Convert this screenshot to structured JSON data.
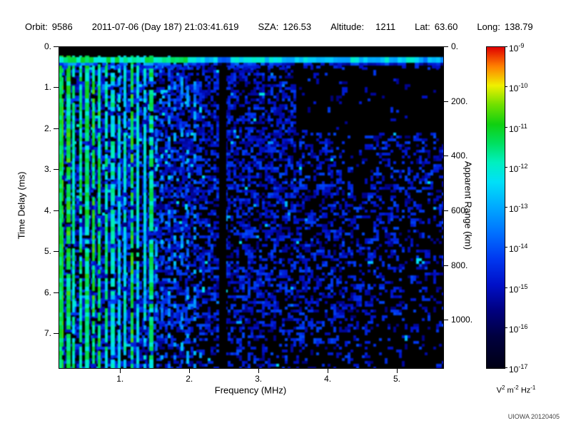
{
  "header": {
    "fields": [
      {
        "label": "Orbit:",
        "value": "9586"
      },
      {
        "label": "",
        "value": "2011-07-06 (Day 187) 21:03:41.619"
      },
      {
        "label": "SZA:",
        "value": "126.53"
      },
      {
        "label": "Altitude:",
        "value": "1211"
      },
      {
        "label": "Lat:",
        "value": "63.60"
      },
      {
        "label": "Long:",
        "value": "138.79"
      }
    ]
  },
  "credit": "UIOWA 20120405",
  "chart_data": {
    "type": "heatmap",
    "title": "",
    "x_axis": {
      "label": "Frequency (MHz)",
      "range_MHz": [
        0.11,
        5.66
      ],
      "ticks": [
        "1.",
        "2.",
        "3.",
        "4.",
        "5."
      ],
      "tick_values_MHz": [
        1,
        2,
        3,
        4,
        5
      ]
    },
    "y_axis": {
      "label": "Time Delay (ms)",
      "range_ms": [
        0,
        7.83
      ],
      "direction": "increasing downward",
      "ticks": [
        "0.",
        "1.",
        "2.",
        "3.",
        "4.",
        "5.",
        "6.",
        "7."
      ],
      "tick_values_ms": [
        0,
        1,
        2,
        3,
        4,
        5,
        6,
        7
      ]
    },
    "y2_axis": {
      "label": "Apparent Range (km)",
      "range_km": [
        0,
        1174
      ],
      "ticks": [
        "0.",
        "200.",
        "400.",
        "600.",
        "800.",
        "1000."
      ],
      "tick_values_km": [
        0,
        200,
        400,
        600,
        800,
        1000
      ]
    },
    "colorbar": {
      "scale": "log10",
      "range": [
        "1e-17",
        "1e-9"
      ],
      "ticks": [
        {
          "base": "10",
          "exp": "-9"
        },
        {
          "base": "10",
          "exp": "-10"
        },
        {
          "base": "10",
          "exp": "-11"
        },
        {
          "base": "10",
          "exp": "-12"
        },
        {
          "base": "10",
          "exp": "-13"
        },
        {
          "base": "10",
          "exp": "-14"
        },
        {
          "base": "10",
          "exp": "-15"
        },
        {
          "base": "10",
          "exp": "-16"
        },
        {
          "base": "10",
          "exp": "-17"
        }
      ],
      "units_parts": [
        {
          "text": "V"
        },
        {
          "text": "2",
          "sup": true
        },
        {
          "text": " m"
        },
        {
          "text": "-2",
          "sup": true
        },
        {
          "text": " Hz"
        },
        {
          "text": "-1",
          "sup": true
        }
      ],
      "stops": [
        {
          "t": 0.0,
          "c": "#000014"
        },
        {
          "t": 0.1,
          "c": "#000040"
        },
        {
          "t": 0.18,
          "c": "#000080"
        },
        {
          "t": 0.26,
          "c": "#0010c8"
        },
        {
          "t": 0.34,
          "c": "#0038f0"
        },
        {
          "t": 0.42,
          "c": "#0070ff"
        },
        {
          "t": 0.5,
          "c": "#00a8ff"
        },
        {
          "t": 0.58,
          "c": "#00e0f8"
        },
        {
          "t": 0.64,
          "c": "#00f0c0"
        },
        {
          "t": 0.7,
          "c": "#00e060"
        },
        {
          "t": 0.76,
          "c": "#10d010"
        },
        {
          "t": 0.82,
          "c": "#70e000"
        },
        {
          "t": 0.88,
          "c": "#f0f000"
        },
        {
          "t": 0.94,
          "c": "#ff8000"
        },
        {
          "t": 1.0,
          "c": "#e00000"
        }
      ]
    },
    "features": [
      {
        "name": "ionospheric-echo-band",
        "description": "bright horizontal cyan/green echo trace spanning all frequencies",
        "time_delay_ms": [
          0.25,
          0.45
        ],
        "frequency_MHz": [
          0.11,
          5.66
        ],
        "approx_intensity": "1e-13 to 1e-12"
      },
      {
        "name": "plasma-oscillation-harmonics",
        "description": "dense vertical green/cyan harmonic lines at low frequency, full height of plot",
        "frequency_MHz": [
          0.11,
          1.45
        ],
        "harmonic_spacing_MHz": 0.09,
        "time_delay_ms": [
          0.25,
          7.8
        ],
        "approx_intensity": "1e-13 to 1e-11"
      },
      {
        "name": "sparse-harmonic-remnants",
        "description": "intermittent faint cyan vertical dashes",
        "frequency_MHz": [
          1.45,
          2.1
        ],
        "approx_intensity": "1e-14"
      },
      {
        "name": "data-gap-column",
        "description": "black vertical stripe of missing/attenuated data",
        "frequency_MHz": [
          2.43,
          2.53
        ],
        "time_delay_ms": [
          0,
          7.8
        ]
      },
      {
        "name": "diffuse-noise-background",
        "description": "speckled blue noise floor over black background",
        "approx_intensity": "1e-16 to 1e-15",
        "coverage": "densest below 3.5 MHz and 0.5-4.5 ms, fading toward high frequency"
      },
      {
        "name": "quiet-region-upper-right",
        "description": "nearly black region with very sparse speckle",
        "frequency_MHz": [
          3.6,
          5.66
        ],
        "time_delay_ms": [
          0.45,
          2.1
        ],
        "approx_intensity": "< 1e-16"
      }
    ]
  }
}
